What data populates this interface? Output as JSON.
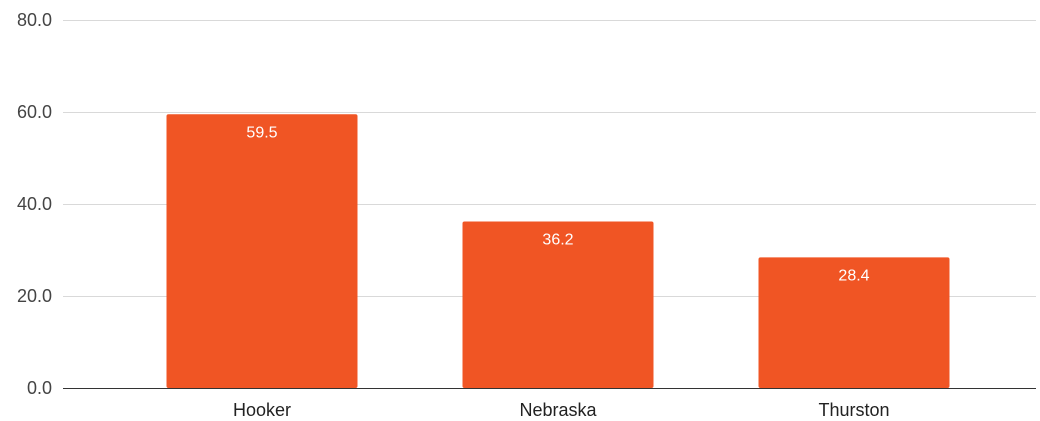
{
  "chart_data": {
    "type": "bar",
    "title": "",
    "xlabel": "",
    "ylabel": "",
    "categories": [
      "Hooker",
      "Nebraska",
      "Thurston"
    ],
    "values": [
      59.5,
      36.2,
      28.4
    ],
    "data_labels": [
      "59.5",
      "36.2",
      "28.4"
    ],
    "ylim": [
      0,
      80
    ],
    "yticks": [
      0,
      20,
      40,
      60,
      80
    ],
    "ytick_labels": [
      "0.0",
      "20.0",
      "40.0",
      "60.0",
      "80.0"
    ],
    "grid": true,
    "legend": "none",
    "bar_color": "#F05524"
  }
}
